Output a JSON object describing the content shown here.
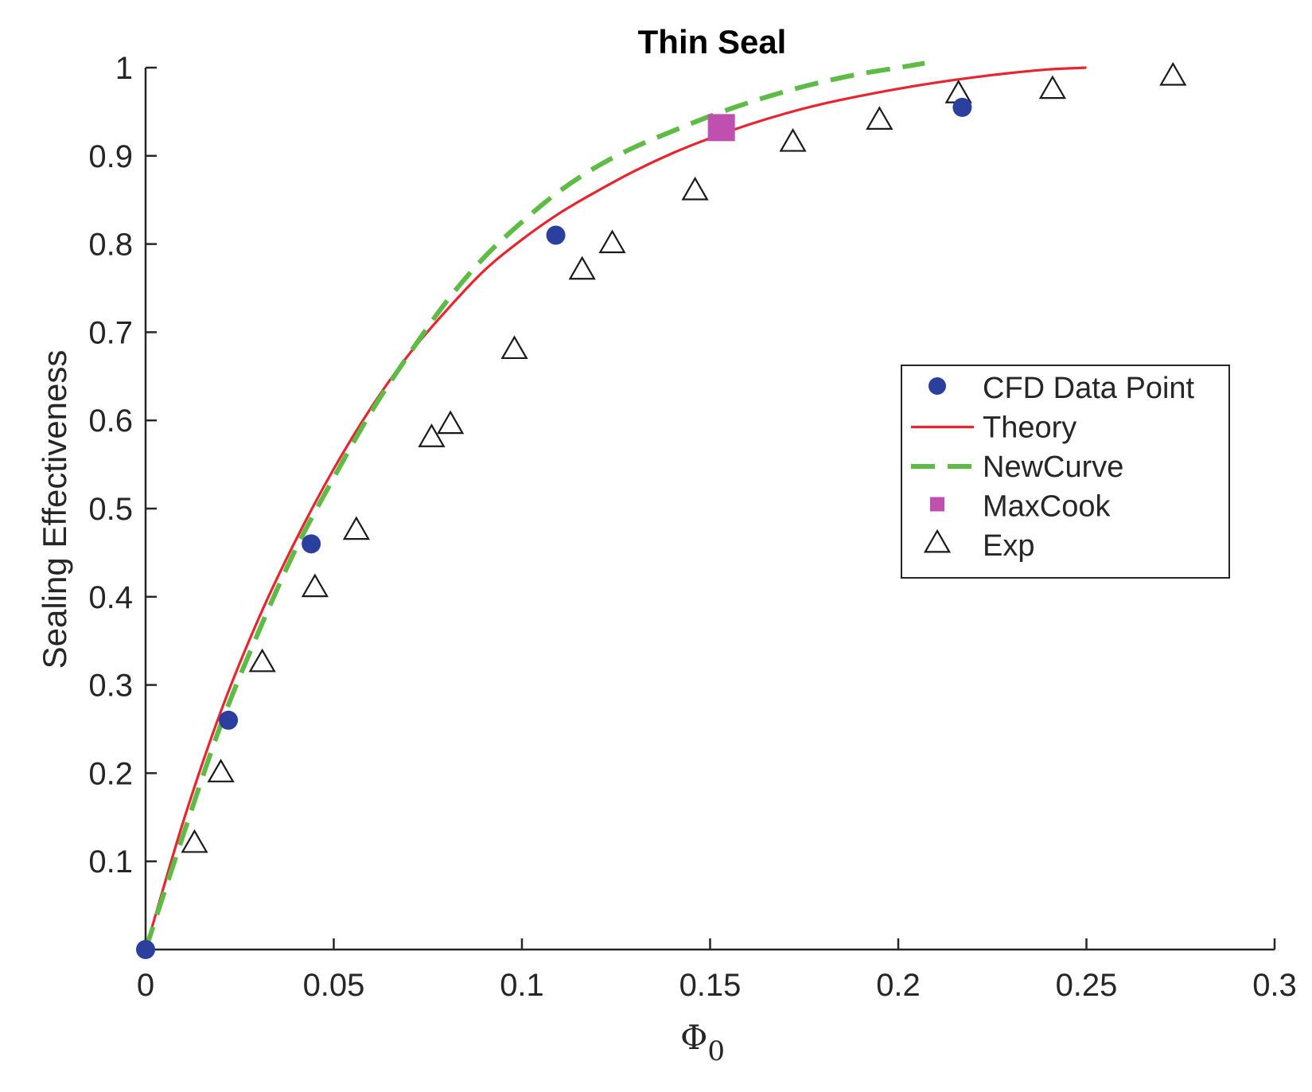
{
  "chart_data": {
    "type": "scatter",
    "title": "Thin Seal",
    "xlabel": {
      "main": "Φ",
      "sub": "0"
    },
    "ylabel": "Sealing Effectiveness",
    "xlim": [
      0,
      0.3
    ],
    "ylim": [
      0,
      1
    ],
    "x_ticks": [
      "0",
      "0.05",
      "0.1",
      "0.15",
      "0.2",
      "0.25",
      "0.3"
    ],
    "y_ticks": [
      "0.1",
      "0.2",
      "0.3",
      "0.4",
      "0.5",
      "0.6",
      "0.7",
      "0.8",
      "0.9",
      "1"
    ],
    "grid": false,
    "legend_position": "right",
    "series": [
      {
        "name": "CFD Data Point",
        "kind": "marker",
        "marker": "circle",
        "color": "#2a3f9e",
        "x": [
          0,
          0.022,
          0.044,
          0.109,
          0.217
        ],
        "y": [
          0.0,
          0.26,
          0.46,
          0.81,
          0.955
        ]
      },
      {
        "name": "Theory",
        "kind": "line",
        "style": "solid",
        "color": "#e8252e",
        "x": [
          0,
          0.01,
          0.02,
          0.03,
          0.04,
          0.05,
          0.06,
          0.07,
          0.08,
          0.09,
          0.1,
          0.11,
          0.12,
          0.13,
          0.14,
          0.15,
          0.16,
          0.17,
          0.18,
          0.19,
          0.2,
          0.21,
          0.22,
          0.23,
          0.24,
          0.25
        ],
        "y": [
          0.0,
          0.145,
          0.27,
          0.375,
          0.465,
          0.545,
          0.615,
          0.675,
          0.725,
          0.77,
          0.805,
          0.835,
          0.86,
          0.883,
          0.903,
          0.92,
          0.935,
          0.948,
          0.959,
          0.968,
          0.976,
          0.983,
          0.989,
          0.994,
          0.998,
          1.0
        ]
      },
      {
        "name": "NewCurve",
        "kind": "line",
        "style": "dashed",
        "color": "#5dbb46",
        "x": [
          0,
          0.01,
          0.02,
          0.03,
          0.04,
          0.05,
          0.06,
          0.07,
          0.08,
          0.09,
          0.1,
          0.11,
          0.12,
          0.13,
          0.14,
          0.15,
          0.16,
          0.17,
          0.18,
          0.19,
          0.2,
          0.207
        ],
        "y": [
          0.0,
          0.13,
          0.255,
          0.36,
          0.455,
          0.535,
          0.61,
          0.675,
          0.735,
          0.785,
          0.825,
          0.86,
          0.888,
          0.91,
          0.928,
          0.945,
          0.96,
          0.973,
          0.984,
          0.993,
          1.0,
          1.005
        ]
      },
      {
        "name": "MaxCook",
        "kind": "marker",
        "marker": "square",
        "color": "#c050b0",
        "x": [
          0.153
        ],
        "y": [
          0.932
        ]
      },
      {
        "name": "Exp",
        "kind": "marker",
        "marker": "triangle",
        "color": "#1a1a1a",
        "x": [
          0.013,
          0.02,
          0.031,
          0.045,
          0.056,
          0.076,
          0.081,
          0.098,
          0.116,
          0.124,
          0.146,
          0.172,
          0.195,
          0.216,
          0.241,
          0.273
        ],
        "y": [
          0.12,
          0.2,
          0.325,
          0.41,
          0.475,
          0.58,
          0.595,
          0.68,
          0.77,
          0.8,
          0.86,
          0.915,
          0.94,
          0.97,
          0.975,
          0.99
        ]
      }
    ]
  }
}
